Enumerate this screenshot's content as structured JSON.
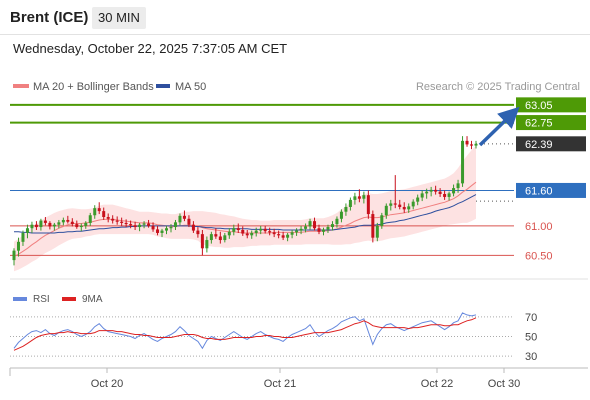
{
  "header": {
    "instrument": "Brent (ICE)",
    "timeframe": "30 MIN",
    "datetime": "Wednesday, October 22, 2025 7:37:05 AM CET"
  },
  "legend": {
    "ma20_label": "MA 20 + Bollinger Bands",
    "ma50_label": "MA 50",
    "copyright": "Research © 2025 Trading Central"
  },
  "rsi_legend": {
    "rsi_label": "RSI",
    "ma_label": "9MA"
  },
  "colors": {
    "up": "#3a9a2c",
    "down": "#c8101c",
    "ma20": "#f08080",
    "ma50": "#2e4f9e",
    "band": "#fde2e2",
    "rsi": "#6688dd",
    "rsi_ma": "#dd2222",
    "target": "#4e9a06",
    "pivot": "#2e6fbf",
    "support": "#d9534f",
    "arrow": "#2e62b0"
  },
  "chart_data": {
    "type": "candlestick",
    "x_tick_labels": [
      "Oct 20",
      "Oct 21",
      "Oct 22",
      "Oct 30"
    ],
    "price_levels": [
      {
        "value": 63.05,
        "label": "63.05",
        "role": "target"
      },
      {
        "value": 62.75,
        "label": "62.75",
        "role": "target"
      },
      {
        "value": 62.39,
        "label": "62.39",
        "role": "last"
      },
      {
        "value": 61.6,
        "label": "61.60",
        "role": "pivot"
      },
      {
        "value": 61.0,
        "label": "61.00",
        "role": "support"
      },
      {
        "value": 60.5,
        "label": "60.50",
        "role": "support"
      }
    ],
    "ylim": [
      60.1,
      63.2
    ],
    "rsi": {
      "levels": [
        70,
        50,
        30
      ],
      "ylim": [
        20,
        80
      ]
    },
    "candles": [
      [
        60.42,
        60.62,
        60.33,
        60.58
      ],
      [
        60.58,
        60.8,
        60.48,
        60.73
      ],
      [
        60.73,
        60.92,
        60.66,
        60.88
      ],
      [
        60.88,
        61.02,
        60.79,
        60.96
      ],
      [
        60.96,
        61.07,
        60.88,
        61.02
      ],
      [
        61.02,
        61.08,
        60.93,
        60.98
      ],
      [
        60.98,
        61.12,
        60.92,
        61.09
      ],
      [
        61.09,
        61.15,
        61.01,
        61.05
      ],
      [
        61.05,
        61.08,
        60.94,
        60.99
      ],
      [
        60.99,
        61.05,
        60.92,
        61.02
      ],
      [
        61.02,
        61.1,
        60.96,
        61.06
      ],
      [
        61.06,
        61.14,
        61.01,
        61.1
      ],
      [
        61.1,
        61.17,
        61.04,
        61.07
      ],
      [
        61.07,
        61.13,
        60.99,
        61.03
      ],
      [
        61.03,
        61.09,
        60.95,
        60.98
      ],
      [
        60.98,
        61.04,
        60.91,
        61.0
      ],
      [
        61.0,
        61.08,
        60.95,
        61.05
      ],
      [
        61.05,
        61.22,
        61.0,
        61.18
      ],
      [
        61.18,
        61.35,
        61.12,
        61.3
      ],
      [
        61.3,
        61.4,
        61.2,
        61.25
      ],
      [
        61.25,
        61.31,
        61.1,
        61.15
      ],
      [
        61.15,
        61.21,
        61.06,
        61.12
      ],
      [
        61.12,
        61.18,
        61.04,
        61.09
      ],
      [
        61.09,
        61.16,
        61.02,
        61.07
      ],
      [
        61.07,
        61.14,
        61.0,
        61.05
      ],
      [
        61.05,
        61.11,
        60.98,
        61.03
      ],
      [
        61.03,
        61.09,
        60.96,
        61.01
      ],
      [
        61.01,
        61.07,
        60.93,
        60.98
      ],
      [
        60.98,
        61.05,
        60.91,
        61.02
      ],
      [
        61.02,
        61.08,
        60.96,
        61.04
      ],
      [
        61.04,
        61.1,
        60.97,
        61.0
      ],
      [
        61.0,
        61.06,
        60.9,
        60.94
      ],
      [
        60.94,
        61.0,
        60.84,
        60.88
      ],
      [
        60.88,
        60.95,
        60.81,
        60.92
      ],
      [
        60.92,
        61.0,
        60.86,
        60.96
      ],
      [
        60.96,
        61.03,
        60.89,
        60.98
      ],
      [
        60.98,
        61.1,
        60.93,
        61.06
      ],
      [
        61.06,
        61.21,
        61.01,
        61.17
      ],
      [
        61.17,
        61.26,
        61.08,
        61.12
      ],
      [
        61.12,
        61.18,
        60.98,
        61.02
      ],
      [
        61.02,
        61.08,
        60.88,
        60.92
      ],
      [
        60.92,
        60.98,
        60.8,
        60.86
      ],
      [
        60.86,
        60.93,
        60.5,
        60.62
      ],
      [
        60.62,
        60.82,
        60.55,
        60.76
      ],
      [
        60.76,
        60.9,
        60.7,
        60.86
      ],
      [
        60.86,
        60.96,
        60.78,
        60.82
      ],
      [
        60.82,
        60.9,
        60.7,
        60.76
      ],
      [
        60.76,
        60.88,
        60.72,
        60.84
      ],
      [
        60.84,
        60.96,
        60.78,
        60.9
      ],
      [
        60.9,
        61.02,
        60.84,
        60.96
      ],
      [
        60.96,
        61.04,
        60.88,
        60.93
      ],
      [
        60.93,
        60.99,
        60.83,
        60.87
      ],
      [
        60.87,
        60.93,
        60.79,
        60.84
      ],
      [
        60.84,
        60.92,
        60.78,
        60.88
      ],
      [
        60.88,
        60.97,
        60.82,
        60.92
      ],
      [
        60.92,
        61.0,
        60.86,
        60.95
      ],
      [
        60.95,
        61.0,
        60.87,
        60.91
      ],
      [
        60.91,
        60.97,
        60.84,
        60.89
      ],
      [
        60.89,
        60.95,
        60.81,
        60.86
      ],
      [
        60.86,
        60.92,
        60.79,
        60.84
      ],
      [
        60.84,
        60.9,
        60.76,
        60.8
      ],
      [
        60.8,
        60.88,
        60.74,
        60.85
      ],
      [
        60.85,
        60.93,
        60.79,
        60.89
      ],
      [
        60.89,
        60.96,
        60.83,
        60.92
      ],
      [
        60.92,
        61.0,
        60.86,
        60.95
      ],
      [
        60.95,
        61.04,
        60.89,
        60.99
      ],
      [
        60.99,
        61.12,
        60.94,
        61.08
      ],
      [
        61.08,
        61.14,
        60.92,
        60.96
      ],
      [
        60.96,
        61.02,
        60.86,
        60.9
      ],
      [
        60.9,
        60.97,
        60.84,
        60.94
      ],
      [
        60.94,
        61.02,
        60.88,
        60.98
      ],
      [
        60.98,
        61.08,
        60.92,
        61.03
      ],
      [
        61.03,
        61.16,
        60.97,
        61.12
      ],
      [
        61.12,
        61.28,
        61.06,
        61.24
      ],
      [
        61.24,
        61.38,
        61.17,
        61.32
      ],
      [
        61.32,
        61.48,
        61.26,
        61.44
      ],
      [
        61.44,
        61.56,
        61.36,
        61.5
      ],
      [
        61.5,
        61.62,
        61.4,
        61.46
      ],
      [
        61.46,
        61.58,
        61.38,
        61.52
      ],
      [
        61.52,
        61.6,
        61.12,
        61.2
      ],
      [
        61.2,
        61.26,
        60.72,
        60.8
      ],
      [
        60.8,
        61.05,
        60.74,
        61.0
      ],
      [
        61.0,
        61.22,
        60.95,
        61.18
      ],
      [
        61.18,
        61.38,
        61.12,
        61.34
      ],
      [
        61.34,
        61.44,
        61.26,
        61.38
      ],
      [
        61.38,
        61.86,
        61.3,
        61.36
      ],
      [
        61.36,
        61.44,
        61.28,
        61.32
      ],
      [
        61.32,
        61.4,
        61.22,
        61.28
      ],
      [
        61.28,
        61.38,
        61.22,
        61.33
      ],
      [
        61.33,
        61.45,
        61.28,
        61.41
      ],
      [
        61.41,
        61.53,
        61.35,
        61.48
      ],
      [
        61.48,
        61.6,
        61.42,
        61.55
      ],
      [
        61.55,
        61.63,
        61.46,
        61.58
      ],
      [
        61.58,
        61.66,
        61.5,
        61.61
      ],
      [
        61.61,
        61.68,
        61.53,
        61.58
      ],
      [
        61.58,
        61.64,
        61.49,
        61.54
      ],
      [
        61.54,
        61.6,
        61.44,
        61.49
      ],
      [
        61.49,
        61.58,
        61.43,
        61.55
      ],
      [
        61.55,
        61.7,
        61.5,
        61.64
      ],
      [
        61.64,
        61.78,
        61.56,
        61.72
      ],
      [
        61.72,
        62.52,
        61.66,
        62.44
      ],
      [
        62.44,
        62.52,
        62.34,
        62.38
      ],
      [
        62.38,
        62.44,
        62.3,
        62.36
      ],
      [
        62.36,
        62.44,
        62.31,
        62.39
      ]
    ],
    "rsi_values": [
      38,
      44,
      48,
      52,
      55,
      56,
      54,
      57,
      53,
      51,
      54,
      56,
      57,
      55,
      52,
      50,
      52,
      55,
      60,
      63,
      58,
      55,
      54,
      53,
      52,
      51,
      50,
      48,
      51,
      53,
      50,
      47,
      45,
      48,
      50,
      52,
      55,
      60,
      56,
      51,
      48,
      45,
      38,
      46,
      50,
      48,
      46,
      49,
      52,
      55,
      52,
      49,
      47,
      50,
      53,
      55,
      52,
      50,
      48,
      47,
      45,
      49,
      52,
      54,
      56,
      58,
      62,
      55,
      50,
      53,
      56,
      58,
      61,
      65,
      67,
      69,
      70,
      66,
      68,
      55,
      42,
      52,
      58,
      62,
      63,
      60,
      58,
      56,
      58,
      60,
      62,
      64,
      65,
      66,
      63,
      60,
      57,
      60,
      64,
      66,
      74,
      72,
      71,
      72
    ],
    "rsi_ma_values": [
      36,
      38,
      40,
      43,
      46,
      49,
      51,
      52,
      53,
      53,
      54,
      54,
      55,
      54,
      54,
      53,
      53,
      53,
      54,
      56,
      56,
      56,
      56,
      55,
      55,
      54,
      53,
      52,
      52,
      51,
      51,
      50,
      49,
      49,
      49,
      49,
      50,
      51,
      52,
      52,
      52,
      51,
      49,
      48,
      48,
      47,
      47,
      47,
      48,
      49,
      49,
      49,
      49,
      49,
      50,
      50,
      51,
      51,
      50,
      50,
      49,
      49,
      49,
      50,
      51,
      52,
      53,
      54,
      54,
      54,
      54,
      55,
      56,
      57,
      59,
      61,
      63,
      64,
      66,
      64,
      61,
      60,
      59,
      59,
      59,
      59,
      59,
      59,
      58,
      59,
      59,
      60,
      61,
      62,
      62,
      62,
      61,
      61,
      62,
      62,
      64,
      66,
      67,
      69
    ],
    "ma20_values": [
      60.48,
      60.52,
      60.57,
      60.62,
      60.68,
      60.73,
      60.79,
      60.84,
      60.88,
      60.92,
      60.96,
      60.99,
      61.02,
      61.04,
      61.04,
      61.04,
      61.05,
      61.06,
      61.08,
      61.1,
      61.11,
      61.11,
      61.11,
      61.1,
      61.09,
      61.08,
      61.07,
      61.06,
      61.05,
      61.05,
      61.05,
      61.04,
      61.02,
      61.01,
      61.0,
      60.99,
      60.99,
      61.0,
      61.01,
      61.01,
      61.01,
      61.0,
      60.97,
      60.95,
      60.94,
      60.93,
      60.92,
      60.91,
      60.9,
      60.9,
      60.89,
      60.88,
      60.88,
      60.88,
      60.88,
      60.88,
      60.88,
      60.88,
      60.89,
      60.89,
      60.89,
      60.89,
      60.89,
      60.89,
      60.89,
      60.9,
      60.91,
      60.91,
      60.91,
      60.91,
      60.92,
      60.93,
      60.95,
      60.98,
      61.01,
      61.04,
      61.08,
      61.11,
      61.14,
      61.15,
      61.14,
      61.14,
      61.15,
      61.17,
      61.19,
      61.2,
      61.21,
      61.22,
      61.24,
      61.26,
      61.28,
      61.3,
      61.32,
      61.34,
      61.36,
      61.38,
      61.4,
      61.43,
      61.46,
      61.51,
      61.57,
      61.62,
      61.68,
      61.74
    ],
    "ma50_values": [
      60.9,
      60.9,
      60.89,
      60.89,
      60.88,
      60.88,
      60.88,
      60.88,
      60.88,
      60.88,
      60.89,
      60.89,
      60.9,
      60.9,
      60.91,
      60.91,
      60.92,
      60.93,
      60.94,
      60.95,
      60.95,
      60.96,
      60.97,
      60.97,
      60.98,
      60.98,
      60.99,
      60.99,
      61.0,
      61.0,
      61.0,
      61.0,
      61.0,
      61.0,
      61.0,
      61.0,
      61.0,
      61.0,
      61.0,
      61.0,
      60.99,
      60.99,
      60.98,
      60.97,
      60.97,
      60.96,
      60.96,
      60.95,
      60.95,
      60.95,
      60.95,
      60.95,
      60.95,
      60.94,
      60.94,
      60.94,
      60.94,
      60.94,
      60.94,
      60.94,
      60.93,
      60.93,
      60.93,
      60.93,
      60.93,
      60.93,
      60.93,
      60.93,
      60.93,
      60.93,
      60.93,
      60.93,
      60.94,
      60.95,
      60.96,
      60.97,
      60.98,
      61.0,
      61.01,
      61.01,
      61.01,
      61.02,
      61.03,
      61.05,
      61.06,
      61.07,
      61.09,
      61.1,
      61.12,
      61.14,
      61.16,
      61.18,
      61.2,
      61.22,
      61.25,
      61.27,
      61.29,
      61.31,
      61.34,
      61.38,
      61.41,
      61.45,
      61.49,
      61.53
    ],
    "bollinger_width": [
      0.25,
      0.26,
      0.27,
      0.28,
      0.29,
      0.3,
      0.3,
      0.3,
      0.3,
      0.3,
      0.29,
      0.28,
      0.27,
      0.26,
      0.25,
      0.24,
      0.23,
      0.23,
      0.23,
      0.24,
      0.25,
      0.25,
      0.25,
      0.24,
      0.23,
      0.22,
      0.21,
      0.2,
      0.19,
      0.19,
      0.19,
      0.19,
      0.2,
      0.2,
      0.21,
      0.21,
      0.21,
      0.22,
      0.23,
      0.23,
      0.24,
      0.25,
      0.28,
      0.29,
      0.29,
      0.29,
      0.28,
      0.28,
      0.27,
      0.26,
      0.25,
      0.24,
      0.23,
      0.22,
      0.22,
      0.21,
      0.21,
      0.21,
      0.21,
      0.21,
      0.21,
      0.21,
      0.21,
      0.21,
      0.21,
      0.21,
      0.22,
      0.22,
      0.22,
      0.22,
      0.23,
      0.25,
      0.27,
      0.3,
      0.32,
      0.35,
      0.37,
      0.39,
      0.4,
      0.4,
      0.4,
      0.4,
      0.4,
      0.4,
      0.4,
      0.4,
      0.4,
      0.4,
      0.4,
      0.4,
      0.4,
      0.4,
      0.4,
      0.4,
      0.4,
      0.4,
      0.4,
      0.41,
      0.43,
      0.47,
      0.52,
      0.57,
      0.6,
      0.62
    ]
  }
}
